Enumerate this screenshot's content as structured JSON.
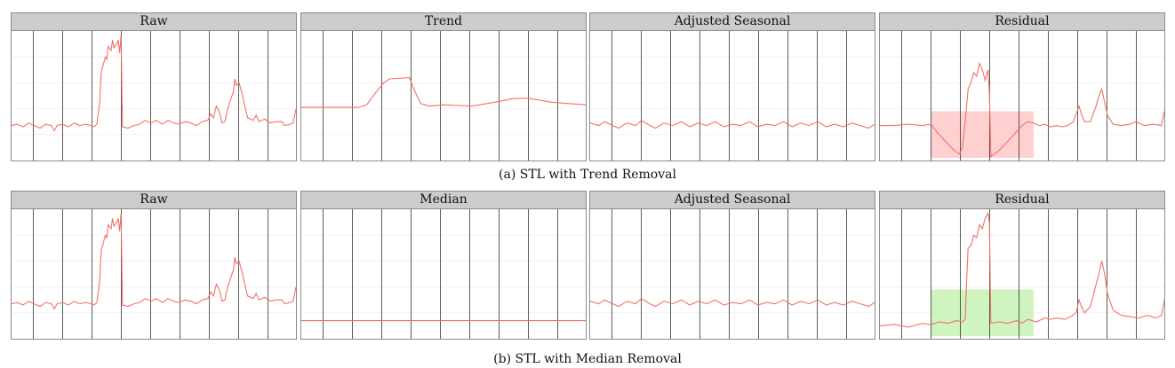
{
  "colors": {
    "line": "#f07268",
    "vgrid": "#333333",
    "hgrid": "#f2f2f2",
    "strip": "#cccccc",
    "highlight_red": "#ffc8c8",
    "highlight_green": "#c8f2b4"
  },
  "chart_data": [
    {
      "type": "line",
      "caption": "(a) STL with Trend Removal",
      "panels": [
        {
          "title": "Raw",
          "series_key": "raw"
        },
        {
          "title": "Trend",
          "series_key": "trend"
        },
        {
          "title": "Adjusted Seasonal",
          "series_key": "seasonal"
        },
        {
          "title": "Residual",
          "series_key": "residual_trend",
          "highlight": {
            "x": [
              0.18,
              0.54
            ],
            "y": [
              0.02,
              0.38
            ],
            "color": "#ffc8c8"
          }
        }
      ]
    },
    {
      "type": "line",
      "caption": "(b) STL with Median Removal",
      "panels": [
        {
          "title": "Raw",
          "series_key": "raw"
        },
        {
          "title": "Median",
          "series_key": "median"
        },
        {
          "title": "Adjusted Seasonal",
          "series_key": "seasonal"
        },
        {
          "title": "Residual",
          "series_key": "residual_median",
          "highlight": {
            "x": [
              0.18,
              0.54
            ],
            "y": [
              0.02,
              0.38
            ],
            "color": "#c8f2b4"
          }
        }
      ]
    }
  ],
  "series": {
    "raw": [
      [
        0,
        0.27
      ],
      [
        0.02,
        0.28
      ],
      [
        0.04,
        0.26
      ],
      [
        0.06,
        0.29
      ],
      [
        0.08,
        0.27
      ],
      [
        0.1,
        0.25
      ],
      [
        0.12,
        0.28
      ],
      [
        0.14,
        0.27
      ],
      [
        0.15,
        0.23
      ],
      [
        0.16,
        0.27
      ],
      [
        0.18,
        0.28
      ],
      [
        0.2,
        0.26
      ],
      [
        0.22,
        0.29
      ],
      [
        0.24,
        0.27
      ],
      [
        0.26,
        0.28
      ],
      [
        0.28,
        0.27
      ],
      [
        0.29,
        0.26
      ],
      [
        0.3,
        0.28
      ],
      [
        0.31,
        0.45
      ],
      [
        0.315,
        0.68
      ],
      [
        0.32,
        0.72
      ],
      [
        0.33,
        0.8
      ],
      [
        0.335,
        0.78
      ],
      [
        0.34,
        0.88
      ],
      [
        0.35,
        0.85
      ],
      [
        0.355,
        0.93
      ],
      [
        0.36,
        0.87
      ],
      [
        0.37,
        0.9
      ],
      [
        0.375,
        0.93
      ],
      [
        0.38,
        0.83
      ],
      [
        0.385,
        0.97
      ],
      [
        0.39,
        0.26
      ],
      [
        0.41,
        0.25
      ],
      [
        0.43,
        0.27
      ],
      [
        0.45,
        0.28
      ],
      [
        0.47,
        0.31
      ],
      [
        0.49,
        0.29
      ],
      [
        0.51,
        0.31
      ],
      [
        0.53,
        0.28
      ],
      [
        0.55,
        0.31
      ],
      [
        0.57,
        0.29
      ],
      [
        0.59,
        0.28
      ],
      [
        0.61,
        0.3
      ],
      [
        0.63,
        0.29
      ],
      [
        0.65,
        0.27
      ],
      [
        0.67,
        0.3
      ],
      [
        0.69,
        0.31
      ],
      [
        0.7,
        0.36
      ],
      [
        0.71,
        0.33
      ],
      [
        0.72,
        0.42
      ],
      [
        0.73,
        0.38
      ],
      [
        0.74,
        0.29
      ],
      [
        0.75,
        0.3
      ],
      [
        0.76,
        0.4
      ],
      [
        0.77,
        0.47
      ],
      [
        0.78,
        0.53
      ],
      [
        0.785,
        0.63
      ],
      [
        0.79,
        0.58
      ],
      [
        0.8,
        0.6
      ],
      [
        0.81,
        0.52
      ],
      [
        0.82,
        0.42
      ],
      [
        0.83,
        0.33
      ],
      [
        0.85,
        0.31
      ],
      [
        0.86,
        0.35
      ],
      [
        0.87,
        0.3
      ],
      [
        0.89,
        0.32
      ],
      [
        0.91,
        0.29
      ],
      [
        0.93,
        0.3
      ],
      [
        0.95,
        0.3
      ],
      [
        0.96,
        0.27
      ],
      [
        0.98,
        0.28
      ],
      [
        0.99,
        0.29
      ],
      [
        1,
        0.4
      ]
    ],
    "trend": [
      [
        0,
        0.41
      ],
      [
        0.1,
        0.41
      ],
      [
        0.2,
        0.41
      ],
      [
        0.23,
        0.43
      ],
      [
        0.26,
        0.52
      ],
      [
        0.29,
        0.6
      ],
      [
        0.31,
        0.63
      ],
      [
        0.38,
        0.64
      ],
      [
        0.4,
        0.53
      ],
      [
        0.42,
        0.44
      ],
      [
        0.45,
        0.42
      ],
      [
        0.5,
        0.43
      ],
      [
        0.6,
        0.42
      ],
      [
        0.68,
        0.45
      ],
      [
        0.75,
        0.48
      ],
      [
        0.8,
        0.48
      ],
      [
        0.88,
        0.45
      ],
      [
        1,
        0.43
      ]
    ],
    "median": [
      [
        0,
        0.14
      ],
      [
        1,
        0.14
      ]
    ],
    "seasonal": [
      [
        0,
        0.29
      ],
      [
        0.03,
        0.27
      ],
      [
        0.05,
        0.3
      ],
      [
        0.08,
        0.27
      ],
      [
        0.1,
        0.25
      ],
      [
        0.13,
        0.29
      ],
      [
        0.16,
        0.27
      ],
      [
        0.18,
        0.31
      ],
      [
        0.21,
        0.27
      ],
      [
        0.23,
        0.25
      ],
      [
        0.26,
        0.29
      ],
      [
        0.29,
        0.27
      ],
      [
        0.32,
        0.3
      ],
      [
        0.35,
        0.26
      ],
      [
        0.38,
        0.29
      ],
      [
        0.41,
        0.27
      ],
      [
        0.44,
        0.3
      ],
      [
        0.47,
        0.26
      ],
      [
        0.5,
        0.28
      ],
      [
        0.53,
        0.27
      ],
      [
        0.56,
        0.3
      ],
      [
        0.59,
        0.26
      ],
      [
        0.62,
        0.28
      ],
      [
        0.65,
        0.27
      ],
      [
        0.68,
        0.3
      ],
      [
        0.71,
        0.26
      ],
      [
        0.74,
        0.29
      ],
      [
        0.77,
        0.27
      ],
      [
        0.8,
        0.3
      ],
      [
        0.83,
        0.26
      ],
      [
        0.86,
        0.28
      ],
      [
        0.89,
        0.26
      ],
      [
        0.92,
        0.29
      ],
      [
        0.95,
        0.27
      ],
      [
        0.98,
        0.25
      ],
      [
        1,
        0.28
      ]
    ],
    "residual_trend": [
      [
        0,
        0.27
      ],
      [
        0.05,
        0.27
      ],
      [
        0.1,
        0.28
      ],
      [
        0.15,
        0.27
      ],
      [
        0.18,
        0.28
      ],
      [
        0.2,
        0.22
      ],
      [
        0.23,
        0.15
      ],
      [
        0.26,
        0.08
      ],
      [
        0.28,
        0.05
      ],
      [
        0.29,
        0.1
      ],
      [
        0.3,
        0.3
      ],
      [
        0.31,
        0.55
      ],
      [
        0.32,
        0.6
      ],
      [
        0.33,
        0.68
      ],
      [
        0.34,
        0.65
      ],
      [
        0.35,
        0.75
      ],
      [
        0.36,
        0.7
      ],
      [
        0.37,
        0.62
      ],
      [
        0.38,
        0.7
      ],
      [
        0.385,
        0.52
      ],
      [
        0.39,
        0.03
      ],
      [
        0.42,
        0.08
      ],
      [
        0.45,
        0.15
      ],
      [
        0.48,
        0.22
      ],
      [
        0.5,
        0.27
      ],
      [
        0.52,
        0.3
      ],
      [
        0.54,
        0.29
      ],
      [
        0.56,
        0.27
      ],
      [
        0.58,
        0.28
      ],
      [
        0.6,
        0.26
      ],
      [
        0.62,
        0.27
      ],
      [
        0.64,
        0.26
      ],
      [
        0.66,
        0.27
      ],
      [
        0.68,
        0.3
      ],
      [
        0.7,
        0.42
      ],
      [
        0.71,
        0.35
      ],
      [
        0.72,
        0.3
      ],
      [
        0.74,
        0.3
      ],
      [
        0.76,
        0.42
      ],
      [
        0.77,
        0.5
      ],
      [
        0.78,
        0.55
      ],
      [
        0.79,
        0.45
      ],
      [
        0.8,
        0.35
      ],
      [
        0.82,
        0.28
      ],
      [
        0.85,
        0.27
      ],
      [
        0.88,
        0.28
      ],
      [
        0.9,
        0.3
      ],
      [
        0.93,
        0.27
      ],
      [
        0.96,
        0.28
      ],
      [
        0.99,
        0.27
      ],
      [
        1,
        0.38
      ]
    ],
    "residual_median": [
      [
        0,
        0.1
      ],
      [
        0.05,
        0.11
      ],
      [
        0.1,
        0.09
      ],
      [
        0.15,
        0.12
      ],
      [
        0.18,
        0.11
      ],
      [
        0.21,
        0.13
      ],
      [
        0.24,
        0.12
      ],
      [
        0.27,
        0.14
      ],
      [
        0.29,
        0.13
      ],
      [
        0.3,
        0.15
      ],
      [
        0.305,
        0.45
      ],
      [
        0.31,
        0.7
      ],
      [
        0.32,
        0.72
      ],
      [
        0.33,
        0.8
      ],
      [
        0.34,
        0.78
      ],
      [
        0.35,
        0.88
      ],
      [
        0.36,
        0.85
      ],
      [
        0.37,
        0.93
      ],
      [
        0.38,
        0.97
      ],
      [
        0.385,
        0.9
      ],
      [
        0.39,
        0.12
      ],
      [
        0.42,
        0.13
      ],
      [
        0.45,
        0.12
      ],
      [
        0.48,
        0.14
      ],
      [
        0.5,
        0.12
      ],
      [
        0.52,
        0.15
      ],
      [
        0.55,
        0.13
      ],
      [
        0.58,
        0.16
      ],
      [
        0.6,
        0.15
      ],
      [
        0.62,
        0.16
      ],
      [
        0.65,
        0.15
      ],
      [
        0.67,
        0.17
      ],
      [
        0.69,
        0.2
      ],
      [
        0.7,
        0.3
      ],
      [
        0.71,
        0.24
      ],
      [
        0.72,
        0.2
      ],
      [
        0.74,
        0.25
      ],
      [
        0.76,
        0.42
      ],
      [
        0.77,
        0.5
      ],
      [
        0.78,
        0.6
      ],
      [
        0.79,
        0.5
      ],
      [
        0.8,
        0.35
      ],
      [
        0.82,
        0.22
      ],
      [
        0.85,
        0.18
      ],
      [
        0.88,
        0.17
      ],
      [
        0.91,
        0.16
      ],
      [
        0.94,
        0.18
      ],
      [
        0.97,
        0.16
      ],
      [
        0.99,
        0.18
      ],
      [
        1,
        0.3
      ]
    ]
  }
}
